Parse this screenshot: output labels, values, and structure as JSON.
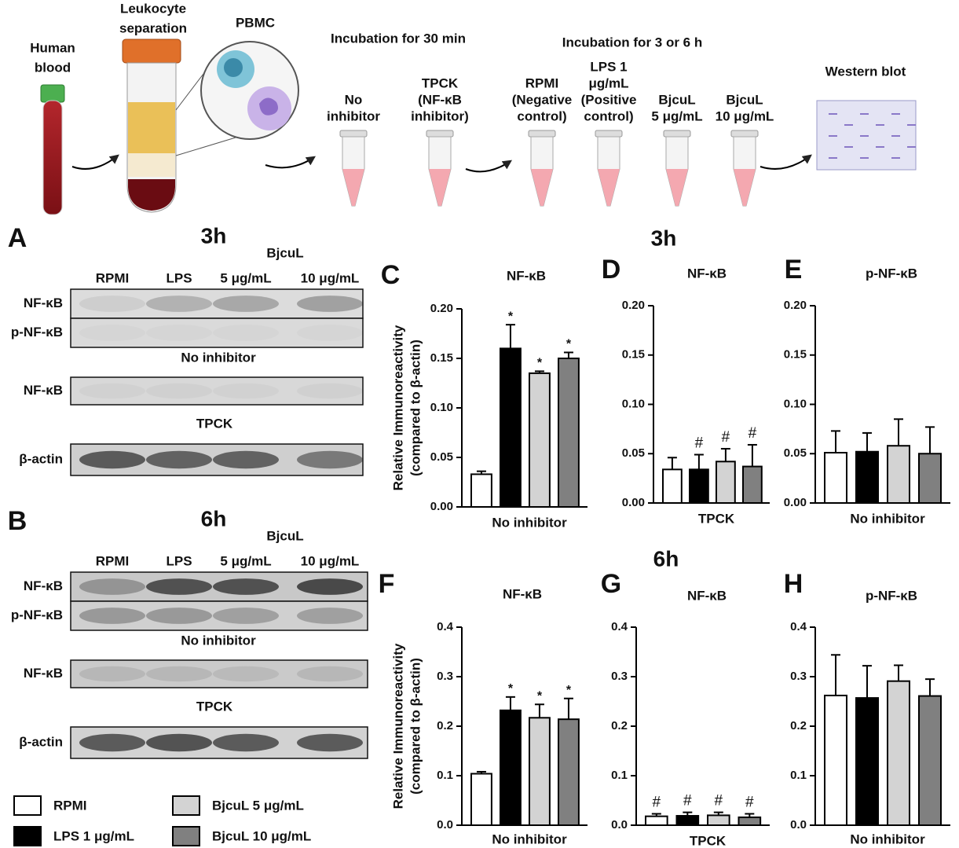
{
  "schematic": {
    "steps": [
      [
        "Human",
        "blood"
      ],
      [
        "Leukocyte",
        "separation"
      ],
      [
        "PBMC"
      ]
    ],
    "phases": [
      "Incubation for 30 min",
      "Incubation for 3 or 6 h"
    ],
    "tubes": [
      [
        "No",
        "inhibitor"
      ],
      [
        "TPCK",
        "(NF-κB",
        "inhibitor)"
      ],
      [
        "RPMI",
        "(Negative",
        "control)"
      ],
      [
        "LPS 1",
        "μg/mL",
        "(Positive",
        "control)"
      ],
      [
        "BjcuL",
        "5 μg/mL"
      ],
      [
        "BjcuL",
        "10 μg/mL"
      ]
    ],
    "readout": "Western blot"
  },
  "blots": [
    {
      "panel": "A",
      "time": "3h",
      "group": "BjcuL",
      "columns": [
        "RPMI",
        "LPS",
        "5 μg/mL",
        "10 μg/mL"
      ],
      "rows": [
        "NF-κB",
        "p-NF-κB",
        "NF-κB",
        "β-actin"
      ],
      "captions": [
        "No inhibitor",
        "TPCK"
      ]
    },
    {
      "panel": "B",
      "time": "6h",
      "group": "BjcuL",
      "columns": [
        "RPMI",
        "LPS",
        "5 μg/mL",
        "10 μg/mL"
      ],
      "rows": [
        "NF-κB",
        "p-NF-κB",
        "NF-κB",
        "β-actin"
      ],
      "captions": [
        "No inhibitor",
        "TPCK"
      ]
    }
  ],
  "chart_sections": [
    "3h",
    "6h"
  ],
  "legend": [
    {
      "name": "RPMI",
      "color": "#ffffff"
    },
    {
      "name": "LPS 1 μg/mL",
      "color": "#000000"
    },
    {
      "name": "BjcuL 5 μg/mL",
      "color": "#d3d3d3"
    },
    {
      "name": "BjcuL 10 μg/mL",
      "color": "#808080"
    }
  ],
  "chart_data": [
    {
      "type": "bar",
      "panel": "C",
      "title": "NF-κB",
      "xlabel": "No inhibitor",
      "ylabel": [
        "Relative Immunoreactivity",
        "(compared to β-actin)"
      ],
      "values": [
        0.033,
        0.16,
        0.135,
        0.15
      ],
      "errors": [
        0.003,
        0.024,
        0.002,
        0.006
      ],
      "annotations": [
        null,
        "*",
        "*",
        "*"
      ],
      "ylim": [
        0,
        0.2
      ],
      "yticks": [
        {
          "value": 0,
          "label": "0.00"
        },
        0.05,
        {
          "value": 0.1,
          "label": "0.10"
        },
        0.15,
        {
          "value": 0.2,
          "label": "0.20"
        }
      ]
    },
    {
      "type": "bar",
      "panel": "D",
      "title": "NF-κB",
      "xlabel": "TPCK",
      "values": [
        0.034,
        0.034,
        0.042,
        0.037
      ],
      "errors": [
        0.012,
        0.015,
        0.013,
        0.022
      ],
      "annotations": [
        null,
        "#",
        "#",
        "#"
      ],
      "ylim": [
        0,
        0.2
      ],
      "yticks": [
        {
          "value": 0,
          "label": "0.00"
        },
        0.05,
        {
          "value": 0.1,
          "label": "0.10"
        },
        0.15,
        {
          "value": 0.2,
          "label": "0.20"
        }
      ]
    },
    {
      "type": "bar",
      "panel": "E",
      "title": "p-NF-κB",
      "xlabel": "No inhibitor",
      "values": [
        0.051,
        0.052,
        0.058,
        0.05
      ],
      "errors": [
        0.022,
        0.019,
        0.027,
        0.027
      ],
      "ylim": [
        0,
        0.2
      ],
      "yticks": [
        {
          "value": 0,
          "label": "0.00"
        },
        0.05,
        {
          "value": 0.1,
          "label": "0.10"
        },
        0.15,
        {
          "value": 0.2,
          "label": "0.20"
        }
      ]
    },
    {
      "type": "bar",
      "panel": "F",
      "title": "NF-κB",
      "xlabel": "No inhibitor",
      "ylabel": [
        "Relative Immunoreactivity",
        "(compared to β-actin)"
      ],
      "values": [
        0.104,
        0.232,
        0.217,
        0.214
      ],
      "errors": [
        0.004,
        0.027,
        0.027,
        0.042
      ],
      "annotations": [
        null,
        "*",
        "*",
        "*"
      ],
      "ylim": [
        0,
        0.4
      ],
      "yticks": [
        {
          "value": 0,
          "label": "0.0"
        },
        0.1,
        0.2,
        0.3,
        0.4
      ]
    },
    {
      "type": "bar",
      "panel": "G",
      "title": "NF-κB",
      "xlabel": "TPCK",
      "values": [
        0.018,
        0.019,
        0.02,
        0.016
      ],
      "errors": [
        0.005,
        0.007,
        0.006,
        0.007
      ],
      "annotations": [
        "#",
        "#",
        "#",
        "#"
      ],
      "ylim": [
        0,
        0.4
      ],
      "yticks": [
        {
          "value": 0,
          "label": "0.0"
        },
        0.1,
        0.2,
        0.3,
        0.4
      ]
    },
    {
      "type": "bar",
      "panel": "H",
      "title": "p-NF-κB",
      "xlabel": "No inhibitor",
      "values": [
        0.262,
        0.257,
        0.291,
        0.261
      ],
      "errors": [
        0.082,
        0.065,
        0.032,
        0.034
      ],
      "ylim": [
        0,
        0.4
      ],
      "yticks": [
        {
          "value": 0,
          "label": "0.0"
        },
        0.1,
        0.2,
        0.3,
        0.4
      ]
    }
  ]
}
